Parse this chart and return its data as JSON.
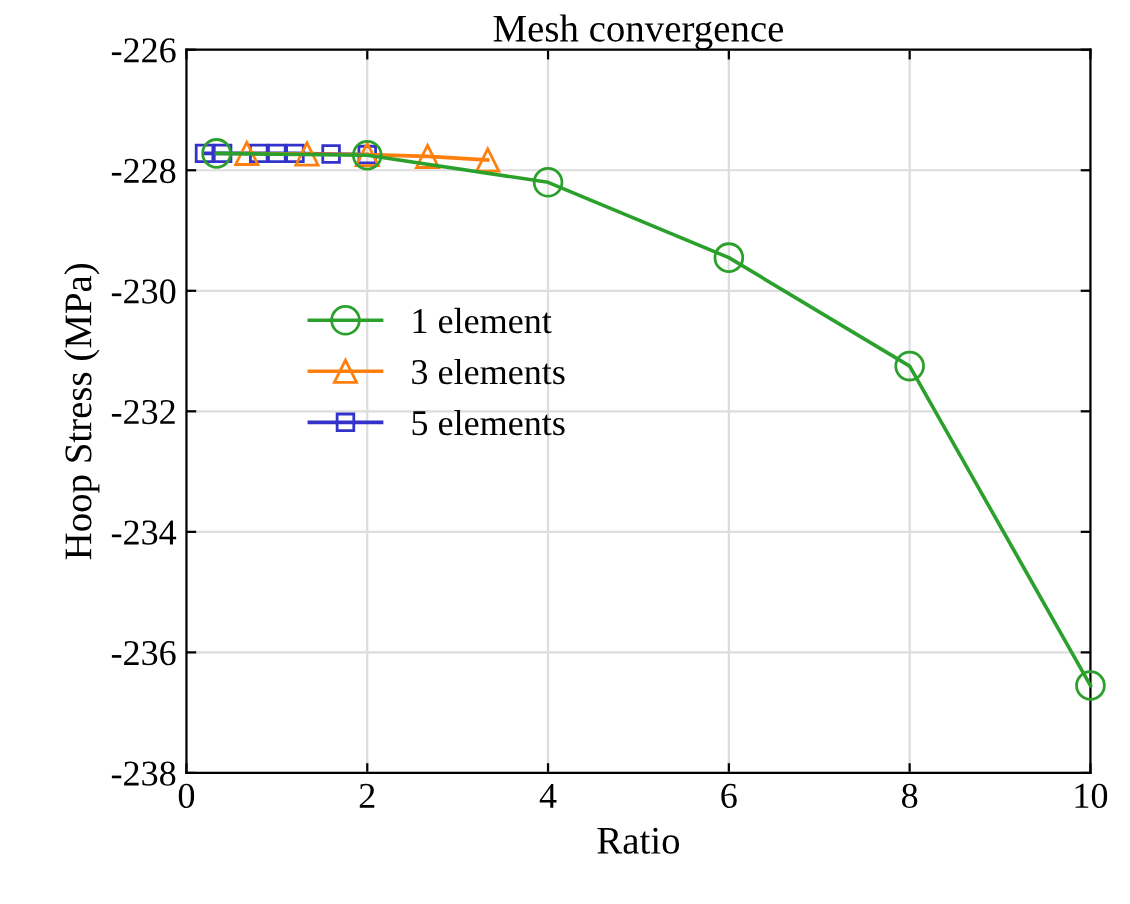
{
  "chart_data": {
    "type": "line",
    "title": "Mesh convergence",
    "xlabel": "Ratio",
    "ylabel": "Hoop Stress (MPa)",
    "series": [
      {
        "name": "1 element",
        "color": "#2ca02c",
        "marker": "circle",
        "x": [
          0.333,
          2,
          4,
          6,
          8,
          10
        ],
        "values": [
          -227.72,
          -227.75,
          -228.2,
          -229.45,
          -231.25,
          -236.55
        ]
      },
      {
        "name": "3 elements",
        "color": "#ff7f0e",
        "marker": "triangle",
        "x": [
          0.667,
          1.333,
          2,
          2.667,
          3.333
        ],
        "values": [
          -227.72,
          -227.73,
          -227.74,
          -227.77,
          -227.83
        ]
      },
      {
        "name": "5 elements",
        "color": "#3333cc",
        "marker": "square",
        "x": [
          0.2,
          0.4,
          0.8,
          1.0,
          1.2,
          1.6,
          2.0
        ],
        "values": [
          -227.72,
          -227.72,
          -227.72,
          -227.72,
          -227.72,
          -227.73,
          -227.74
        ]
      }
    ],
    "xlim": [
      0,
      10
    ],
    "xticks": [
      0,
      2,
      4,
      6,
      8,
      10
    ],
    "ylim": [
      -238,
      -226
    ],
    "yticks": [
      -238,
      -236,
      -234,
      -232,
      -230,
      -228,
      -226
    ],
    "grid": true,
    "legend": "left"
  }
}
